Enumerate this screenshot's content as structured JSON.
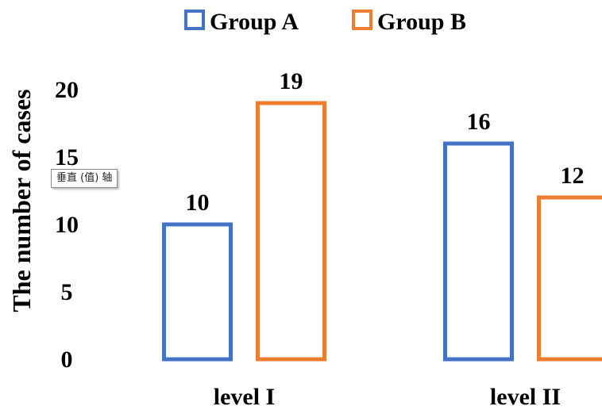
{
  "chart_data": {
    "type": "bar",
    "categories": [
      "level I",
      "level II"
    ],
    "series": [
      {
        "name": "Group A",
        "values": [
          10,
          16
        ],
        "color": "#4472C4"
      },
      {
        "name": "Group B",
        "values": [
          19,
          12
        ],
        "color": "#ED7D31"
      }
    ],
    "ylabel": "The number of cases",
    "ylim": [
      0,
      20
    ],
    "yticks": [
      0,
      5,
      10,
      15,
      20
    ],
    "legend_position": "top-center",
    "bar_style": "outlined",
    "grid": false
  },
  "tooltip": {
    "text": "垂直 (值) 轴"
  }
}
